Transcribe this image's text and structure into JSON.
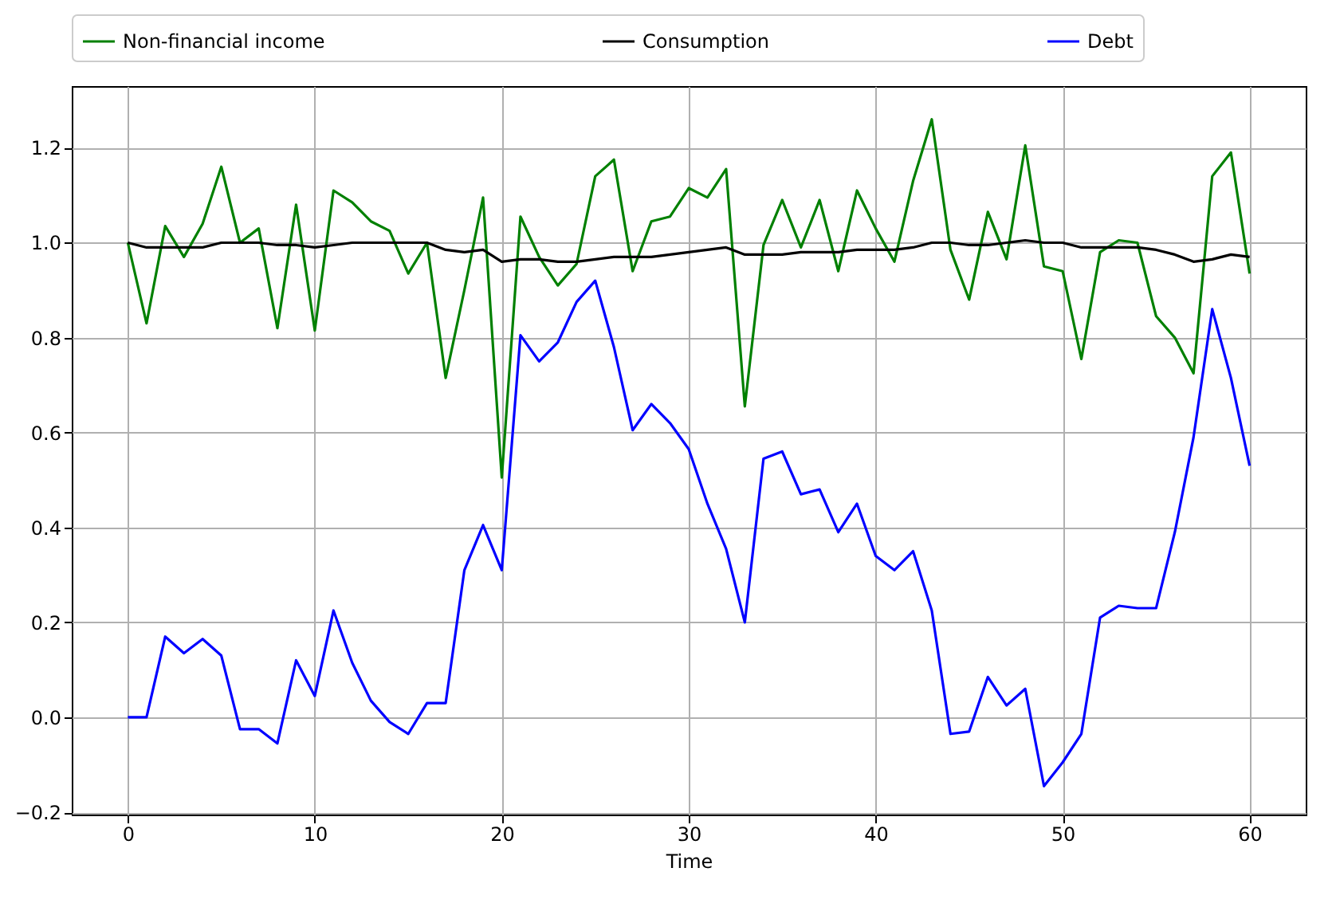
{
  "chart_data": {
    "type": "line",
    "xlabel": "Time",
    "xlim": [
      -3,
      63
    ],
    "xticks": [
      0,
      10,
      20,
      30,
      40,
      50,
      60
    ],
    "ylim": [
      -0.205,
      1.33
    ],
    "yticks": [
      {
        "value": -0.2,
        "label": "−0.2"
      },
      {
        "value": 0,
        "label": "0.0"
      },
      {
        "value": 0.2,
        "label": "0.2"
      },
      {
        "value": 0.4,
        "label": "0.4"
      },
      {
        "value": 0.6,
        "label": "0.6"
      },
      {
        "value": 0.8,
        "label": "0.8"
      },
      {
        "value": 1.0,
        "label": "1.0"
      },
      {
        "value": 1.2,
        "label": "1.2"
      }
    ],
    "grid": true,
    "legend": "top",
    "x": [
      0,
      1,
      2,
      3,
      4,
      5,
      6,
      7,
      8,
      9,
      10,
      11,
      12,
      13,
      14,
      15,
      16,
      17,
      18,
      19,
      20,
      21,
      22,
      23,
      24,
      25,
      26,
      27,
      28,
      29,
      30,
      31,
      32,
      33,
      34,
      35,
      36,
      37,
      38,
      39,
      40,
      41,
      42,
      43,
      44,
      45,
      46,
      47,
      48,
      49,
      50,
      51,
      52,
      53,
      54,
      55,
      56,
      57,
      58,
      59,
      60
    ],
    "series": [
      {
        "name": "Non-financial income",
        "color": "#008000",
        "values": [
          1.0,
          0.83,
          1.035,
          0.97,
          1.04,
          1.16,
          1.0,
          1.03,
          0.82,
          1.08,
          0.815,
          1.11,
          1.085,
          1.045,
          1.025,
          0.935,
          1.0,
          0.715,
          0.9,
          1.095,
          0.505,
          1.055,
          0.97,
          0.91,
          0.955,
          1.14,
          1.175,
          0.94,
          1.045,
          1.055,
          1.115,
          1.095,
          1.155,
          0.655,
          0.995,
          1.09,
          0.99,
          1.09,
          0.94,
          1.11,
          1.03,
          0.96,
          1.13,
          1.26,
          0.985,
          0.88,
          1.065,
          0.965,
          1.205,
          0.95,
          0.94,
          0.755,
          0.98,
          1.005,
          1.0,
          0.845,
          0.8,
          0.725,
          1.14,
          1.19,
          0.935
        ]
      },
      {
        "name": "Consumption",
        "color": "#000000",
        "values": [
          1.0,
          0.99,
          0.99,
          0.99,
          0.99,
          1.0,
          1.0,
          1.0,
          0.995,
          0.995,
          0.99,
          0.995,
          1.0,
          1.0,
          1.0,
          1.0,
          1.0,
          0.985,
          0.98,
          0.985,
          0.96,
          0.965,
          0.965,
          0.96,
          0.96,
          0.965,
          0.97,
          0.97,
          0.97,
          0.975,
          0.98,
          0.985,
          0.99,
          0.975,
          0.975,
          0.975,
          0.98,
          0.98,
          0.98,
          0.985,
          0.985,
          0.985,
          0.99,
          1.0,
          1.0,
          0.995,
          0.995,
          1.0,
          1.005,
          1.0,
          1.0,
          0.99,
          0.99,
          0.99,
          0.99,
          0.985,
          0.975,
          0.96,
          0.965,
          0.975,
          0.97
        ]
      },
      {
        "name": "Debt",
        "color": "#0000ff",
        "values": [
          0,
          0,
          0.17,
          0.135,
          0.165,
          0.13,
          -0.025,
          -0.025,
          -0.055,
          0.12,
          0.045,
          0.225,
          0.115,
          0.035,
          -0.01,
          -0.035,
          0.03,
          0.03,
          0.31,
          0.405,
          0.31,
          0.805,
          0.75,
          0.79,
          0.875,
          0.92,
          0.78,
          0.605,
          0.66,
          0.62,
          0.565,
          0.45,
          0.355,
          0.2,
          0.545,
          0.56,
          0.47,
          0.48,
          0.39,
          0.45,
          0.34,
          0.31,
          0.35,
          0.225,
          -0.035,
          -0.03,
          0.085,
          0.025,
          0.06,
          -0.145,
          -0.095,
          -0.035,
          0.21,
          0.235,
          0.23,
          0.23,
          0.39,
          0.59,
          0.86,
          0.715,
          0.53
        ]
      }
    ]
  }
}
